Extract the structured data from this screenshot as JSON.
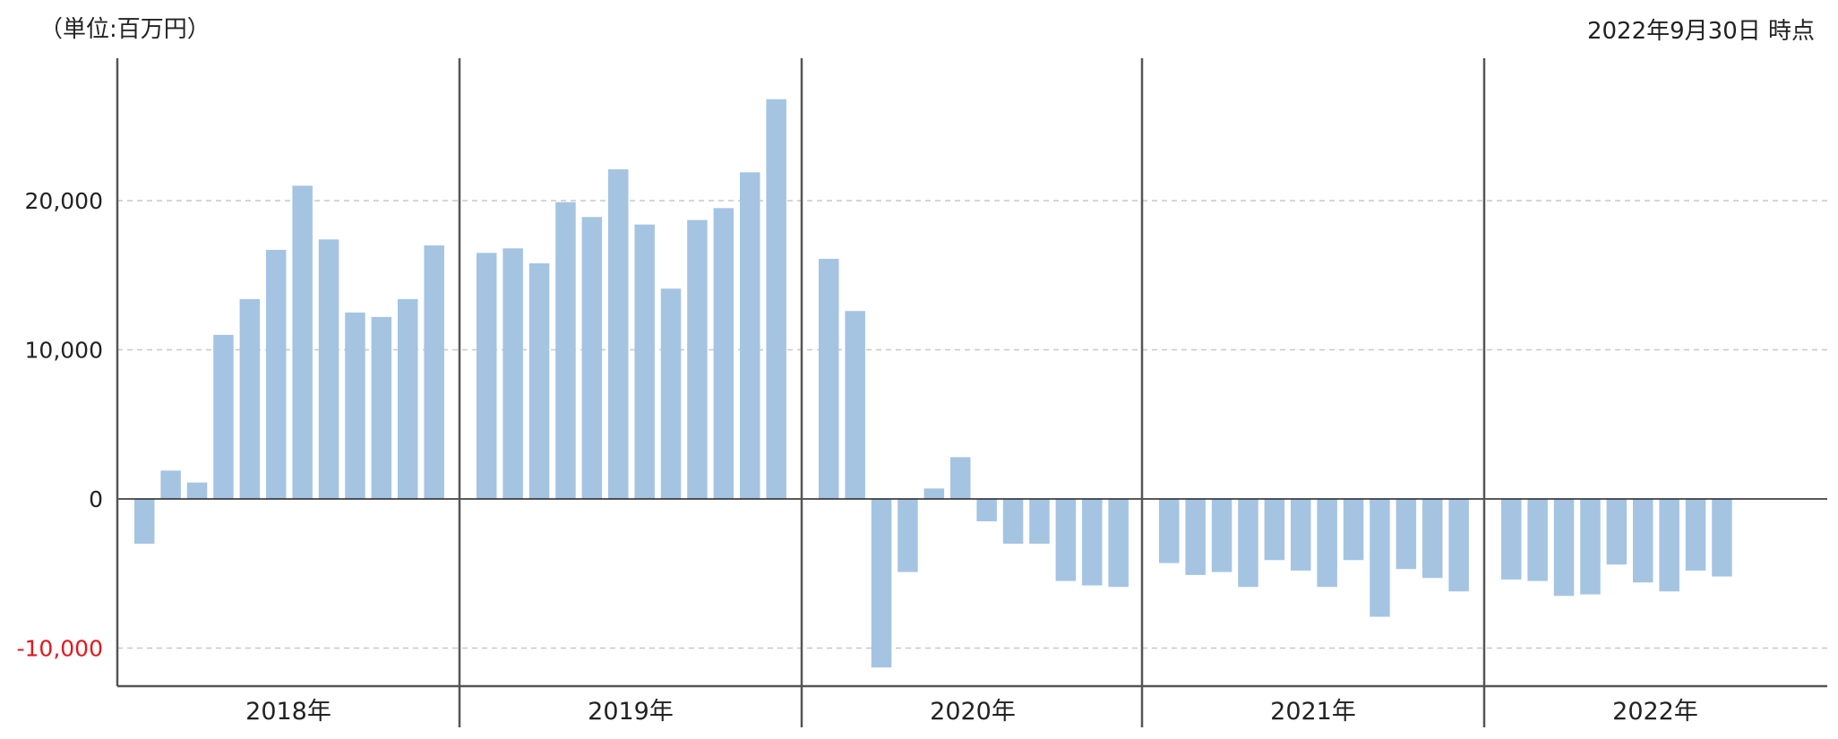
{
  "header": {
    "unit_label": "（単位:百万円）",
    "as_of_label": "2022年9月30日 時点"
  },
  "colors": {
    "bar": "#a4c4e2",
    "grid": "#c8c8c8",
    "axis": "#555555",
    "negative_tick": "#e0181e"
  },
  "chart_data": {
    "type": "bar",
    "unit": "百万円",
    "ylim": [
      -12500,
      27000
    ],
    "yticks": [
      {
        "value": 20000,
        "label": "20,000"
      },
      {
        "value": 10000,
        "label": "10,000"
      },
      {
        "value": 0,
        "label": "0"
      },
      {
        "value": -10000,
        "label": "-10,000"
      }
    ],
    "grid": true,
    "years": [
      {
        "label": "2018年",
        "values": [
          -3000,
          1900,
          1100,
          11000,
          13400,
          16700,
          21000,
          17400,
          12500,
          12200,
          13400,
          17000
        ]
      },
      {
        "label": "2019年",
        "values": [
          16500,
          16800,
          15800,
          19900,
          18900,
          22100,
          18400,
          14100,
          18700,
          19500,
          21900,
          26800
        ]
      },
      {
        "label": "2020年",
        "values": [
          16100,
          12600,
          -11300,
          -4900,
          700,
          2800,
          -1500,
          -3000,
          -3000,
          -5500,
          -5800,
          -5900
        ]
      },
      {
        "label": "2021年",
        "values": [
          -4300,
          -5100,
          -4900,
          -5900,
          -4100,
          -4800,
          -5900,
          -4100,
          -7900,
          -4700,
          -5300,
          -6200
        ]
      },
      {
        "label": "2022年",
        "values": [
          -5400,
          -5500,
          -6500,
          -6400,
          -4400,
          -5600,
          -6200,
          -4800,
          -5200
        ]
      }
    ]
  }
}
